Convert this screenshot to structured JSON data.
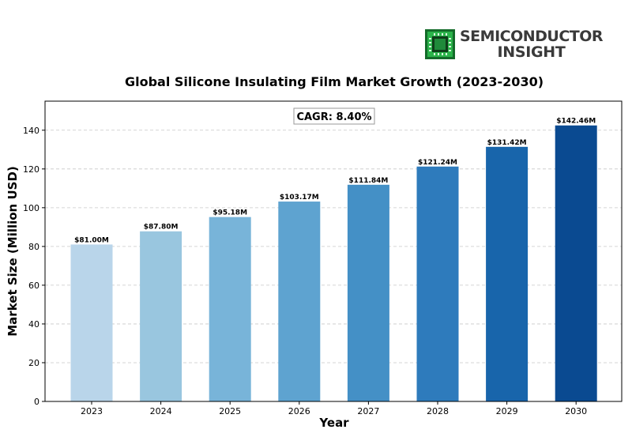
{
  "logo": {
    "line1": "SEMICONDUCTOR",
    "line2": "INSIGHT",
    "colors": {
      "chip": "#2bb34a",
      "chip_dark": "#146b2a",
      "text": "#3a3a3a"
    },
    "icon": "chip-icon"
  },
  "chart_data": {
    "type": "bar",
    "title": "Global Silicone Insulating Film Market Growth (2023-2030)",
    "xlabel": "Year",
    "ylabel": "Market Size (Million USD)",
    "categories": [
      "2023",
      "2024",
      "2025",
      "2026",
      "2027",
      "2028",
      "2029",
      "2030"
    ],
    "values": [
      81.0,
      87.8,
      95.18,
      103.17,
      111.84,
      121.24,
      131.42,
      142.46
    ],
    "value_labels": [
      "$81.00M",
      "$87.80M",
      "$95.18M",
      "$103.17M",
      "$111.84M",
      "$121.24M",
      "$131.42M",
      "$142.46M"
    ],
    "colors": [
      "#b9d5ea",
      "#99c6df",
      "#78b4d9",
      "#5ea3d0",
      "#4490c6",
      "#2e7bbc",
      "#1865ab",
      "#0a4a91"
    ],
    "ylim": [
      0,
      155
    ],
    "yticks": [
      0,
      20,
      40,
      60,
      80,
      100,
      120,
      140
    ],
    "grid": true,
    "annotation": "CAGR: 8.40%"
  }
}
